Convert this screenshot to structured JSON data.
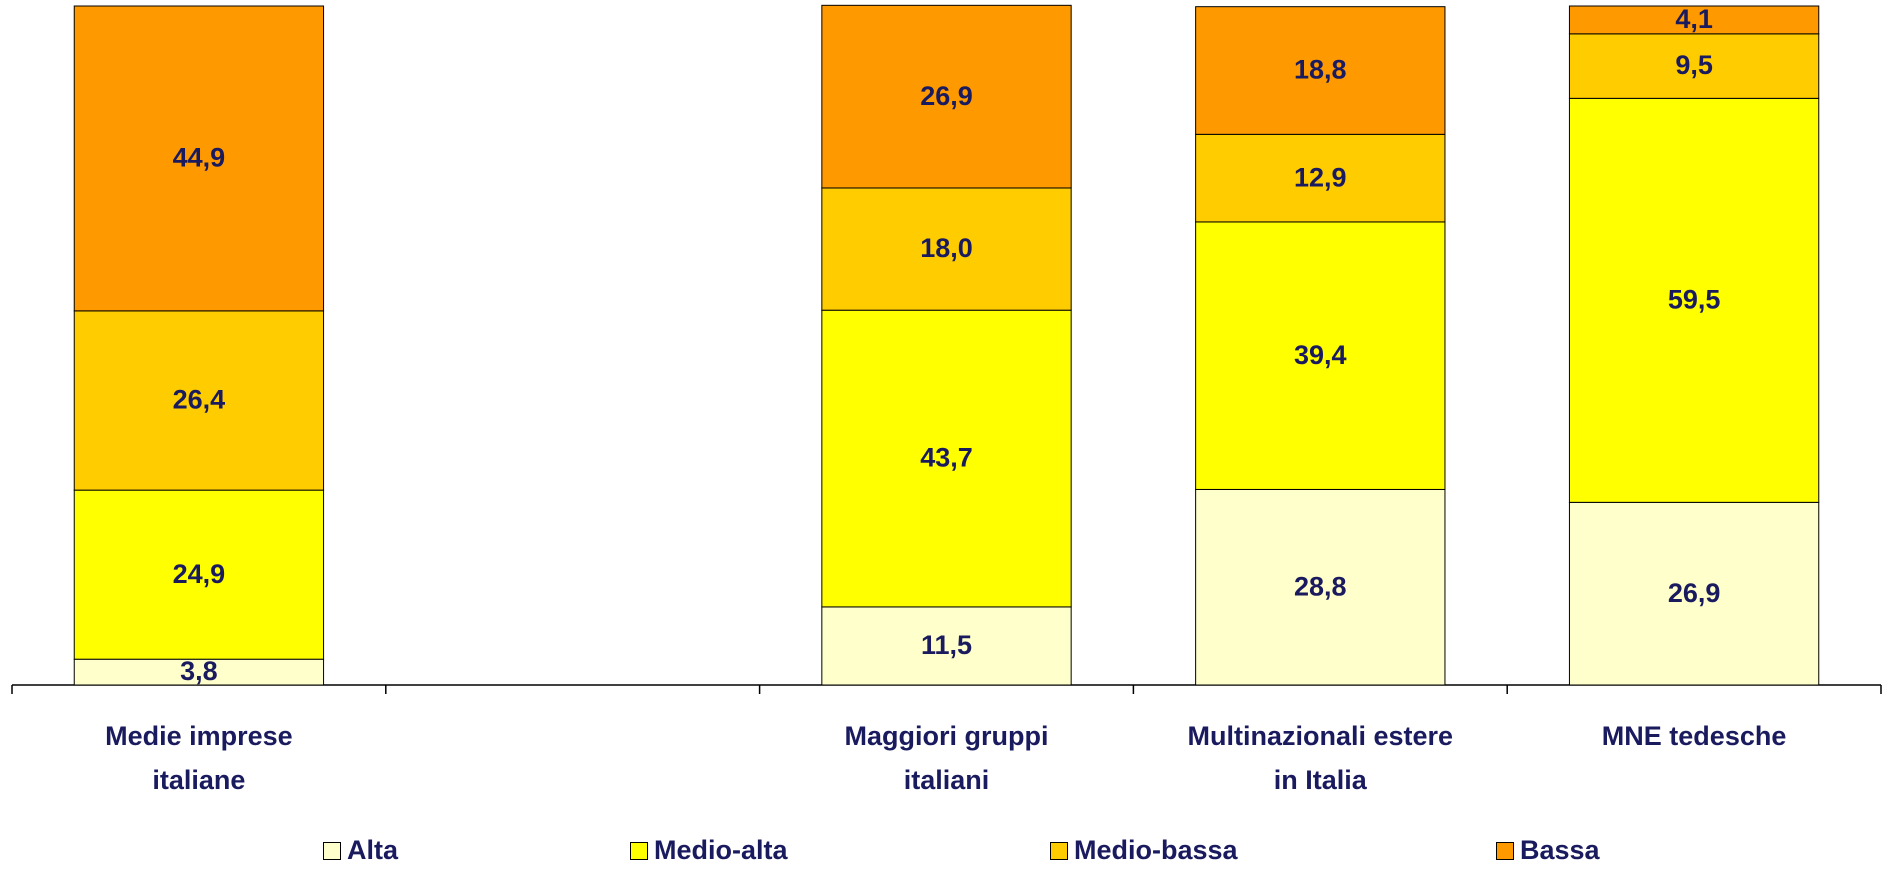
{
  "chart_data": {
    "type": "stacked_bar",
    "categories": [
      "Medie imprese\nitaliane",
      null,
      "Maggiori gruppi\nitaliani",
      "Multinazionali estere\nin Italia",
      "MNE tedesche"
    ],
    "series": [
      {
        "name": "Alta",
        "color": "#ffffcc",
        "values": [
          3.8,
          null,
          11.5,
          28.8,
          26.9
        ],
        "value_labels": [
          "3,8",
          null,
          "11,5",
          "28,8",
          "26,9"
        ]
      },
      {
        "name": "Medio-alta",
        "color": "#ffff00",
        "values": [
          24.9,
          null,
          43.7,
          39.4,
          59.5
        ],
        "value_labels": [
          "24,9",
          null,
          "43,7",
          "39,4",
          "59,5"
        ]
      },
      {
        "name": "Medio-bassa",
        "color": "#ffcc00",
        "values": [
          26.4,
          null,
          18.0,
          12.9,
          9.5
        ],
        "value_labels": [
          "26,4",
          null,
          "18,0",
          "12,9",
          "9,5"
        ]
      },
      {
        "name": "Bassa",
        "color": "#ff9900",
        "values": [
          44.9,
          null,
          26.9,
          18.8,
          4.1
        ],
        "value_labels": [
          "44,9",
          null,
          "26,9",
          "18,8",
          "4,1"
        ]
      }
    ],
    "ylim": [
      0,
      100
    ],
    "legend": "bottom"
  }
}
